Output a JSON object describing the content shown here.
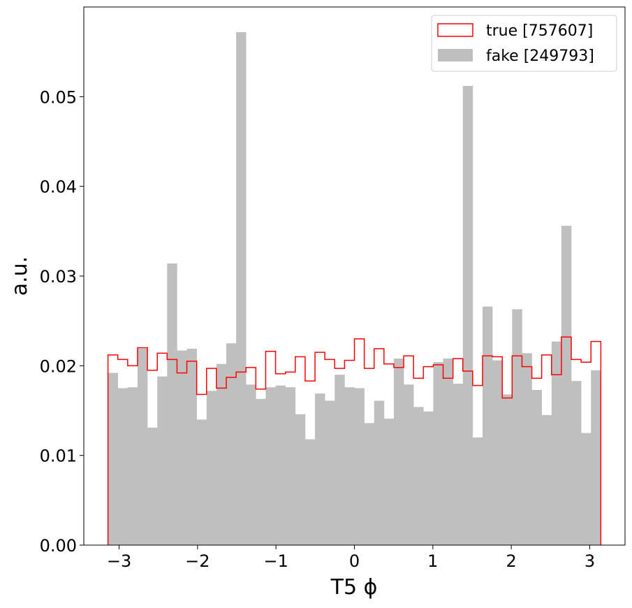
{
  "chart_data": {
    "type": "histogram",
    "xlabel": "T5 ϕ",
    "ylabel": "a.u.",
    "xlim": [
      -3.45,
      3.45
    ],
    "ylim": [
      0,
      0.06
    ],
    "bin_range": [
      -3.14159,
      3.14159
    ],
    "n_bins": 50,
    "xticks": [
      -3,
      -2,
      -1,
      0,
      1,
      2,
      3
    ],
    "xtick_labels": [
      "−3",
      "−2",
      "−1",
      "0",
      "1",
      "2",
      "3"
    ],
    "yticks": [
      0,
      0.01,
      0.02,
      0.03,
      0.04,
      0.05
    ],
    "ytick_labels": [
      "0.00",
      "0.01",
      "0.02",
      "0.03",
      "0.04",
      "0.05"
    ],
    "legend_position": "top-right",
    "grid": false,
    "series": [
      {
        "name": "true [757607]",
        "style": "step",
        "color": "#ff0000",
        "values": [
          0.0212,
          0.0207,
          0.02,
          0.022,
          0.0195,
          0.0214,
          0.0207,
          0.0192,
          0.0205,
          0.0168,
          0.0197,
          0.0175,
          0.0187,
          0.0193,
          0.0198,
          0.0174,
          0.0216,
          0.0191,
          0.0193,
          0.021,
          0.0183,
          0.0215,
          0.0207,
          0.0197,
          0.0206,
          0.023,
          0.0197,
          0.0219,
          0.0202,
          0.0198,
          0.0211,
          0.0186,
          0.0199,
          0.0201,
          0.0186,
          0.0208,
          0.0194,
          0.0178,
          0.0211,
          0.021,
          0.0164,
          0.0211,
          0.0199,
          0.0186,
          0.0212,
          0.019,
          0.0232,
          0.0207,
          0.0204,
          0.0227
        ]
      },
      {
        "name": "fake [249793]",
        "style": "filled",
        "color": "#bfbfbf",
        "values": [
          0.0192,
          0.0175,
          0.0176,
          0.0219,
          0.0131,
          0.0188,
          0.0314,
          0.0217,
          0.0219,
          0.014,
          0.0172,
          0.0202,
          0.0225,
          0.0572,
          0.0179,
          0.0163,
          0.0176,
          0.0178,
          0.0176,
          0.0146,
          0.0118,
          0.0169,
          0.0161,
          0.019,
          0.0176,
          0.0175,
          0.0136,
          0.0161,
          0.0141,
          0.0208,
          0.0179,
          0.0154,
          0.0149,
          0.0204,
          0.0208,
          0.018,
          0.0512,
          0.012,
          0.0266,
          0.0206,
          0.0168,
          0.0263,
          0.0214,
          0.0173,
          0.0145,
          0.0227,
          0.0356,
          0.0183,
          0.0125,
          0.0195
        ]
      }
    ]
  }
}
